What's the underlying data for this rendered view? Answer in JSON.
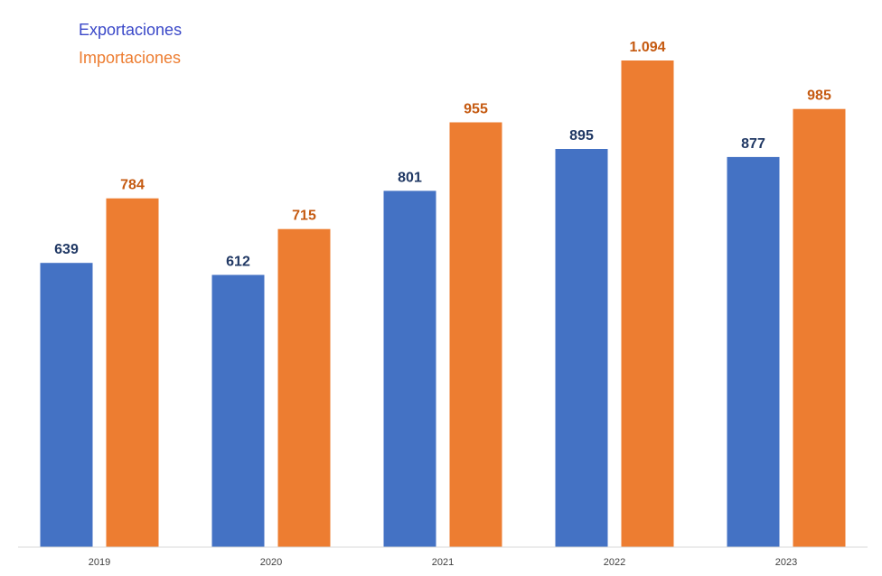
{
  "chart_data": {
    "type": "bar",
    "categories": [
      "2019",
      "2020",
      "2021",
      "2022",
      "2023"
    ],
    "series": [
      {
        "name": "Exportaciones",
        "values": [
          639,
          612,
          801,
          895,
          877
        ],
        "labels": [
          "639",
          "612",
          "801",
          "895",
          "877"
        ],
        "color": "#4472C4",
        "label_color": "#203864",
        "legend_color": "#3A48C8"
      },
      {
        "name": "Importaciones",
        "values": [
          784,
          715,
          955,
          1094,
          985
        ],
        "labels": [
          "784",
          "715",
          "955",
          "1.094",
          "985"
        ],
        "color": "#ED7D31",
        "label_color": "#C55A11",
        "legend_color": "#ED7D31"
      }
    ],
    "title": "",
    "xlabel": "",
    "ylabel": "",
    "ylim": [
      0,
      1150
    ],
    "grid": false,
    "legend": "top-left",
    "baseline_color": "#D9D9D9"
  }
}
